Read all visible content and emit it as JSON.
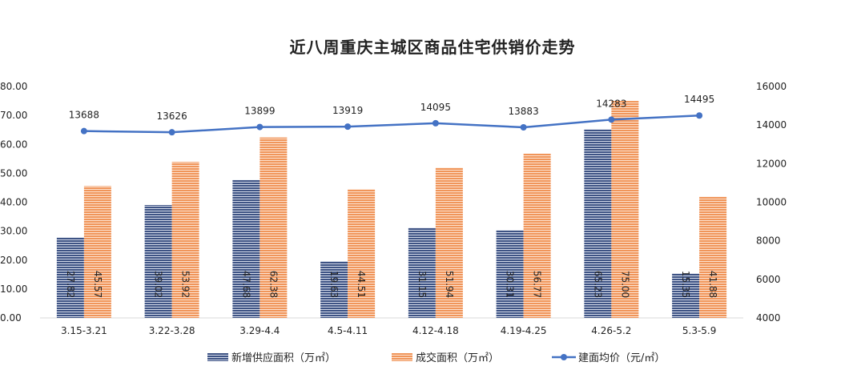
{
  "chart_data": {
    "type": "bar",
    "title": "近八周重庆主城区商品住宅供销价走势",
    "categories": [
      "3.15-3.21",
      "3.22-3.28",
      "3.29-4.4",
      "4.5-4.11",
      "4.12-4.18",
      "4.19-4.25",
      "4.26-5.2",
      "5.3-5.9"
    ],
    "left_axis": {
      "ylim": [
        0,
        80
      ],
      "ticks": [
        "0.00",
        "10.00",
        "20.00",
        "30.00",
        "40.00",
        "50.00",
        "60.00",
        "70.00",
        "80.00"
      ]
    },
    "right_axis": {
      "ylim": [
        4000,
        16000
      ],
      "ticks": [
        "4000",
        "6000",
        "8000",
        "10000",
        "12000",
        "14000",
        "16000"
      ]
    },
    "series": [
      {
        "name": "新增供应面积（万㎡）",
        "type": "bar",
        "axis": "left",
        "color": "#3e5384",
        "values": [
          27.82,
          39.02,
          47.68,
          19.63,
          31.15,
          30.31,
          65.23,
          15.35
        ],
        "labels": [
          "27.82",
          "39.02",
          "47.68",
          "19.63",
          "31.15",
          "30.31",
          "65.23",
          "15.35"
        ]
      },
      {
        "name": "成交面积（万㎡）",
        "type": "bar",
        "axis": "left",
        "color": "#f0955a",
        "values": [
          45.57,
          53.92,
          62.38,
          44.51,
          51.94,
          56.77,
          75.0,
          41.88
        ],
        "labels": [
          "45.57",
          "53.92",
          "62.38",
          "44.51",
          "51.94",
          "56.77",
          "75.00",
          "41.88"
        ]
      },
      {
        "name": "建面均价（元/㎡）",
        "type": "line",
        "axis": "right",
        "color": "#4472c4",
        "values": [
          13688,
          13626,
          13899,
          13919,
          14095,
          13883,
          14283,
          14495
        ],
        "labels": [
          "13688",
          "13626",
          "13899",
          "13919",
          "14095",
          "13883",
          "14283",
          "14495"
        ]
      }
    ],
    "legend_position": "bottom",
    "grid": false
  }
}
